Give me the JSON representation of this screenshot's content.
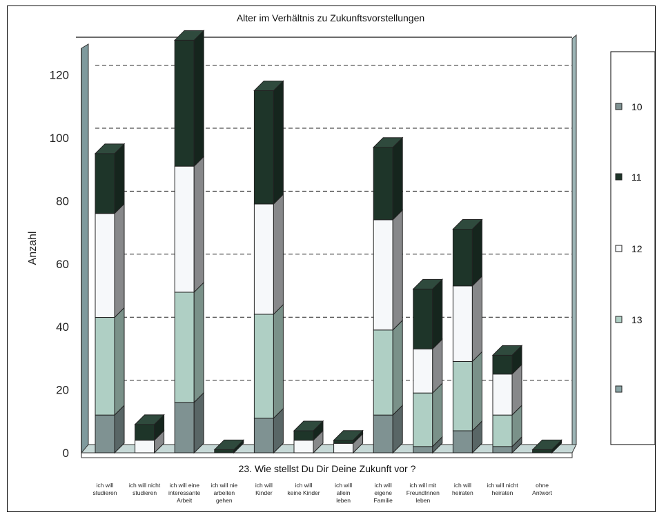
{
  "chart_data": {
    "type": "bar",
    "stacked": true,
    "title": "Alter im Verhältnis zu Zukunftsvorstellungen",
    "xlabel": "23. Wie stellst Du Dir Deine Zukunft vor ?",
    "ylabel": "Anzahl",
    "ylim": [
      0,
      130
    ],
    "yticks": [
      "0",
      "20",
      "40",
      "60",
      "80",
      "100",
      "120"
    ],
    "grid": true,
    "legend_position": "right",
    "categories": [
      [
        "ich will",
        "studieren"
      ],
      [
        "ich will nicht",
        "studieren"
      ],
      [
        "ich will eine",
        "interessante",
        "Arbeit"
      ],
      [
        "ich will nie",
        "arbeiten",
        "gehen"
      ],
      [
        "ich will",
        "Kinder"
      ],
      [
        "ich will",
        "keine Kinder"
      ],
      [
        "ich will",
        "allein",
        "leben"
      ],
      [
        "ich will",
        "eigene",
        "Familie"
      ],
      [
        "ich will mit",
        "FreundInnen",
        "leben"
      ],
      [
        "ich will",
        "heiraten"
      ],
      [
        "ich will nicht",
        "heiraten"
      ],
      [
        "ohne",
        "Antwort"
      ]
    ],
    "series": [
      {
        "name": "10",
        "color": "#7f9292",
        "values": [
          12,
          0,
          16,
          0,
          11,
          0,
          0,
          12,
          2,
          7,
          2,
          0
        ]
      },
      {
        "name": "11",
        "color": "#1e3529",
        "values": [
          19,
          5,
          40,
          1,
          36,
          3,
          1,
          23,
          19,
          18,
          6,
          1
        ]
      },
      {
        "name": "12",
        "color": "#f6f8fa",
        "values": [
          33,
          4,
          40,
          0,
          35,
          4,
          3,
          35,
          14,
          24,
          13,
          0
        ]
      },
      {
        "name": "13",
        "color": "#afcfc4",
        "values": [
          31,
          0,
          35,
          0,
          33,
          0,
          0,
          27,
          17,
          22,
          10,
          0
        ]
      },
      {
        "name": "",
        "color": "#8aa5a6",
        "values": [
          0,
          0,
          0,
          0,
          0,
          0,
          0,
          0,
          0,
          0,
          0,
          0
        ]
      }
    ],
    "stack_order_bottom_to_top": [
      "10",
      "13",
      "12",
      "11"
    ]
  }
}
